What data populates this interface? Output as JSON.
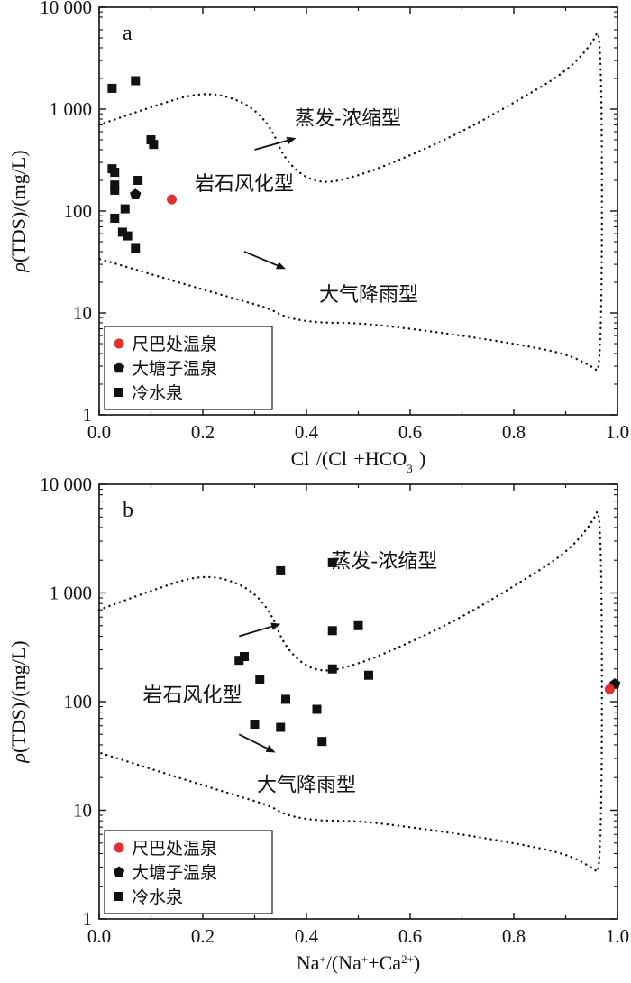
{
  "chart_data": [
    {
      "type": "scatter",
      "panel_label": "a",
      "x_scale": "linear",
      "y_scale": "log",
      "xlim": [
        0.0,
        1.0
      ],
      "ylim": [
        1,
        10000
      ],
      "x_ticks": [
        "0.0",
        "0.2",
        "0.4",
        "0.6",
        "0.8",
        "1.0"
      ],
      "y_ticks": [
        "1",
        "10",
        "100",
        "1 000",
        "10 000"
      ],
      "xlabel": {
        "base": "Cl",
        "sup1": "−",
        "mid": "/(Cl",
        "sup2": "−",
        "mid2": "+HCO",
        "sub": "3",
        "sup3": "−",
        "end": ")"
      },
      "ylabel": {
        "rho": "ρ",
        "rest": "(TDS)/(mg/L)"
      },
      "regions": {
        "evaporation": "蒸发-浓缩型",
        "weathering": "岩石风化型",
        "precipitation": "大气降雨型"
      },
      "boundary_x": [
        0.0,
        0.1,
        0.2,
        0.28,
        0.33,
        0.36,
        0.42,
        0.5,
        0.6,
        0.7,
        0.8,
        0.9,
        0.95,
        0.97
      ],
      "boundary_upper_y": [
        700,
        1050,
        1500,
        1200,
        700,
        300,
        180,
        220,
        350,
        600,
        1150,
        2300,
        4300,
        7000
      ],
      "boundary_lower_y": [
        34,
        24,
        17,
        13,
        11,
        9,
        8,
        8,
        7,
        6,
        5,
        4,
        3,
        2.5
      ],
      "arrows": [
        {
          "from": [
            0.3,
            400
          ],
          "to": [
            0.38,
            520
          ]
        },
        {
          "from": [
            0.28,
            40
          ],
          "to": [
            0.36,
            27
          ]
        }
      ],
      "legend": [
        {
          "label": "尺巴处温泉",
          "marker": "circle",
          "color": "#e03030"
        },
        {
          "label": "大塘子温泉",
          "marker": "pentagon",
          "color": "#111111"
        },
        {
          "label": "冷水泉",
          "marker": "square",
          "color": "#111111"
        }
      ],
      "series": [
        {
          "name": "尺巴处温泉",
          "marker": "circle",
          "color": "#e03030",
          "points": [
            [
              0.14,
              130
            ]
          ]
        },
        {
          "name": "大塘子温泉",
          "marker": "pentagon",
          "color": "#111111",
          "points": [
            [
              0.07,
              145
            ]
          ]
        },
        {
          "name": "冷水泉",
          "marker": "square",
          "color": "#111111",
          "points": [
            [
              0.025,
              1600
            ],
            [
              0.07,
              1900
            ],
            [
              0.1,
              500
            ],
            [
              0.105,
              450
            ],
            [
              0.025,
              260
            ],
            [
              0.03,
              240
            ],
            [
              0.03,
              180
            ],
            [
              0.03,
              160
            ],
            [
              0.075,
              200
            ],
            [
              0.05,
              105
            ],
            [
              0.03,
              85
            ],
            [
              0.045,
              62
            ],
            [
              0.055,
              57
            ],
            [
              0.07,
              43
            ]
          ]
        }
      ]
    },
    {
      "type": "scatter",
      "panel_label": "b",
      "x_scale": "linear",
      "y_scale": "log",
      "xlim": [
        0.0,
        1.0
      ],
      "ylim": [
        1,
        10000
      ],
      "x_ticks": [
        "0.0",
        "0.2",
        "0.4",
        "0.6",
        "0.8",
        "1.0"
      ],
      "y_ticks": [
        "1",
        "10",
        "100",
        "1 000",
        "10 000"
      ],
      "xlabel": {
        "base": "Na",
        "sup1": "+",
        "mid": "/(Na",
        "sup2": "+",
        "mid2": "+Ca",
        "sup3": "2+",
        "end": ")"
      },
      "ylabel": {
        "rho": "ρ",
        "rest": "(TDS)/(mg/L)"
      },
      "regions": {
        "evaporation": "蒸发-浓缩型",
        "weathering": "岩石风化型",
        "precipitation": "大气降雨型"
      },
      "boundary_x": [
        0.0,
        0.1,
        0.2,
        0.28,
        0.33,
        0.36,
        0.42,
        0.5,
        0.6,
        0.7,
        0.8,
        0.9,
        0.95,
        0.97
      ],
      "boundary_upper_y": [
        700,
        1050,
        1500,
        1200,
        700,
        300,
        180,
        220,
        350,
        600,
        1150,
        2300,
        4300,
        7000
      ],
      "boundary_lower_y": [
        34,
        24,
        17,
        13,
        11,
        9,
        8,
        8,
        7,
        6,
        5,
        4,
        3,
        2.5
      ],
      "arrows": [
        {
          "from": [
            0.27,
            400
          ],
          "to": [
            0.35,
            520
          ]
        },
        {
          "from": [
            0.27,
            50
          ],
          "to": [
            0.34,
            34
          ]
        }
      ],
      "legend": [
        {
          "label": "尺巴处温泉",
          "marker": "circle",
          "color": "#e03030"
        },
        {
          "label": "大塘子温泉",
          "marker": "pentagon",
          "color": "#111111"
        },
        {
          "label": "冷水泉",
          "marker": "square",
          "color": "#111111"
        }
      ],
      "series": [
        {
          "name": "尺巴处温泉",
          "marker": "circle",
          "color": "#e03030",
          "points": [
            [
              0.985,
              130
            ]
          ]
        },
        {
          "name": "大塘子温泉",
          "marker": "pentagon",
          "color": "#111111",
          "points": [
            [
              0.995,
              145
            ]
          ]
        },
        {
          "name": "冷水泉",
          "marker": "square",
          "color": "#111111",
          "points": [
            [
              0.35,
              1600
            ],
            [
              0.45,
              1900
            ],
            [
              0.45,
              450
            ],
            [
              0.5,
              500
            ],
            [
              0.27,
              240
            ],
            [
              0.28,
              260
            ],
            [
              0.31,
              160
            ],
            [
              0.45,
              200
            ],
            [
              0.52,
              175
            ],
            [
              0.36,
              105
            ],
            [
              0.42,
              85
            ],
            [
              0.3,
              62
            ],
            [
              0.35,
              58
            ],
            [
              0.43,
              43
            ]
          ]
        }
      ]
    }
  ]
}
